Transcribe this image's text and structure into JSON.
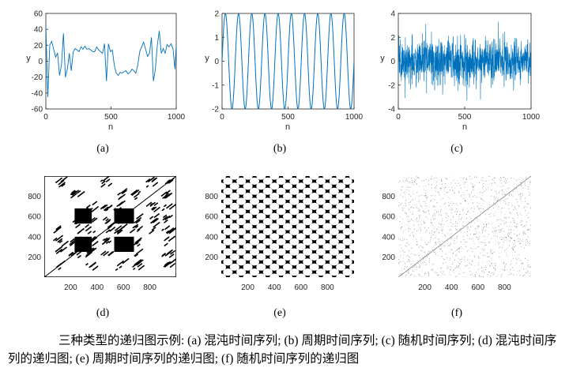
{
  "figure": {
    "caption": "三种类型的递归图示例: (a) 混沌时间序列; (b)  周期时间序列; (c) 随机时间序列; (d) 混沌时间序列的递归图; (e) 周期时间序列的递归图; (f) 随机时间序列的递归图"
  },
  "chart_data": [
    {
      "panel": "(a)",
      "type": "line",
      "xlabel": "n",
      "ylabel": "y",
      "xlim": [
        0,
        1000
      ],
      "ylim": [
        -60,
        60
      ],
      "x_ticks": [
        "0",
        "500",
        "1000"
      ],
      "y_ticks": [
        "-60",
        "-40",
        "-20",
        "0",
        "20",
        "40",
        "60"
      ],
      "color": "#0072BD",
      "series": [
        {
          "x": [
            0,
            15,
            30,
            45,
            60,
            75,
            90,
            105,
            120,
            135,
            150,
            165,
            180,
            195,
            210,
            225,
            240,
            255,
            270,
            285,
            300,
            315,
            330,
            345,
            360,
            375,
            390,
            405,
            420,
            435,
            450,
            465,
            480,
            495,
            510,
            525,
            540,
            555,
            570,
            585,
            600,
            615,
            630,
            645,
            660,
            675,
            690,
            705,
            720,
            735,
            750,
            765,
            780,
            795,
            810,
            825,
            840,
            855,
            870,
            885,
            900,
            915,
            930,
            945,
            960,
            975,
            990,
            1000
          ],
          "y": [
            45,
            -45,
            20,
            25,
            15,
            5,
            10,
            -18,
            -5,
            35,
            -20,
            -10,
            10,
            -12,
            12,
            16,
            14,
            12,
            18,
            15,
            19,
            15,
            16,
            14,
            12,
            12,
            18,
            14,
            12,
            10,
            22,
            -25,
            22,
            12,
            14,
            -5,
            -15,
            -18,
            -14,
            -15,
            -13,
            -12,
            -16,
            -14,
            -10,
            -12,
            -15,
            -5,
            12,
            18,
            24,
            15,
            6,
            10,
            30,
            -25,
            -10,
            20,
            38,
            10,
            16,
            10,
            21,
            18,
            22,
            16,
            -10,
            20
          ]
        }
      ]
    },
    {
      "panel": "(b)",
      "type": "line",
      "xlabel": "n",
      "ylabel": "y",
      "xlim": [
        0,
        1000
      ],
      "ylim": [
        -2,
        2
      ],
      "x_ticks": [
        "0",
        "500",
        "1000"
      ],
      "y_ticks": [
        "-2",
        "-1",
        "0",
        "1",
        "2"
      ],
      "color": "#0072BD",
      "series": [
        {
          "function": "y = 2 sin(2π n / 100)",
          "x": [
            0,
            25,
            50,
            75,
            100,
            125,
            150,
            175,
            200,
            225,
            250,
            275,
            300,
            325,
            350,
            375,
            400,
            425,
            450,
            475,
            500,
            525,
            550,
            575,
            600,
            625,
            650,
            675,
            700,
            725,
            750,
            775,
            800,
            825,
            850,
            875,
            900,
            925,
            950,
            975,
            1000
          ],
          "y": [
            0,
            2,
            0,
            -2,
            0,
            2,
            0,
            -2,
            0,
            2,
            0,
            -2,
            0,
            2,
            0,
            -2,
            0,
            2,
            0,
            -2,
            0,
            2,
            0,
            -2,
            0,
            2,
            0,
            -2,
            0,
            2,
            0,
            -2,
            0,
            2,
            0,
            -2,
            0,
            2,
            0,
            -2,
            0
          ]
        }
      ]
    },
    {
      "panel": "(c)",
      "type": "line",
      "xlabel": "n",
      "ylabel": "y",
      "xlim": [
        0,
        1000
      ],
      "ylim": [
        -4,
        4
      ],
      "x_ticks": [
        "0",
        "500",
        "1000"
      ],
      "y_ticks": [
        "-4",
        "-2",
        "0",
        "2",
        "4"
      ],
      "color": "#0072BD",
      "series": [
        {
          "distribution": "Gaussian white noise",
          "mean": 0,
          "std": 1,
          "n_points": 1000,
          "range": [
            -3.2,
            3.2
          ]
        }
      ]
    },
    {
      "panel": "(d)",
      "type": "heatmap",
      "description_source": "recurrence plot of (a)",
      "xlim": [
        0,
        1000
      ],
      "ylim": [
        0,
        1000
      ],
      "x_ticks": [
        "200",
        "400",
        "600",
        "800"
      ],
      "y_ticks": [
        "200",
        "400",
        "600",
        "800"
      ],
      "solid_blocks": [
        {
          "x": [
            230,
            360
          ],
          "y": [
            250,
            400
          ]
        },
        {
          "x": [
            530,
            680
          ],
          "y": [
            530,
            680
          ]
        },
        {
          "x": [
            530,
            680
          ],
          "y": [
            250,
            400
          ]
        },
        {
          "x": [
            230,
            360
          ],
          "y": [
            530,
            680
          ]
        }
      ],
      "color": "#000000"
    },
    {
      "panel": "(e)",
      "type": "heatmap",
      "description_source": "recurrence plot of (b)",
      "xlim": [
        0,
        1000
      ],
      "ylim": [
        0,
        1000
      ],
      "x_ticks": [
        "200",
        "400",
        "600",
        "800"
      ],
      "y_ticks": [
        "200",
        "400",
        "600",
        "800"
      ],
      "period": 100,
      "color": "#000000"
    },
    {
      "panel": "(f)",
      "type": "heatmap",
      "description_source": "recurrence plot of (c)",
      "xlim": [
        0,
        1000
      ],
      "ylim": [
        0,
        1000
      ],
      "x_ticks": [
        "200",
        "400",
        "600",
        "800"
      ],
      "y_ticks": [
        "200",
        "400",
        "600",
        "800"
      ],
      "density": "sparse",
      "color": "#000000"
    }
  ]
}
